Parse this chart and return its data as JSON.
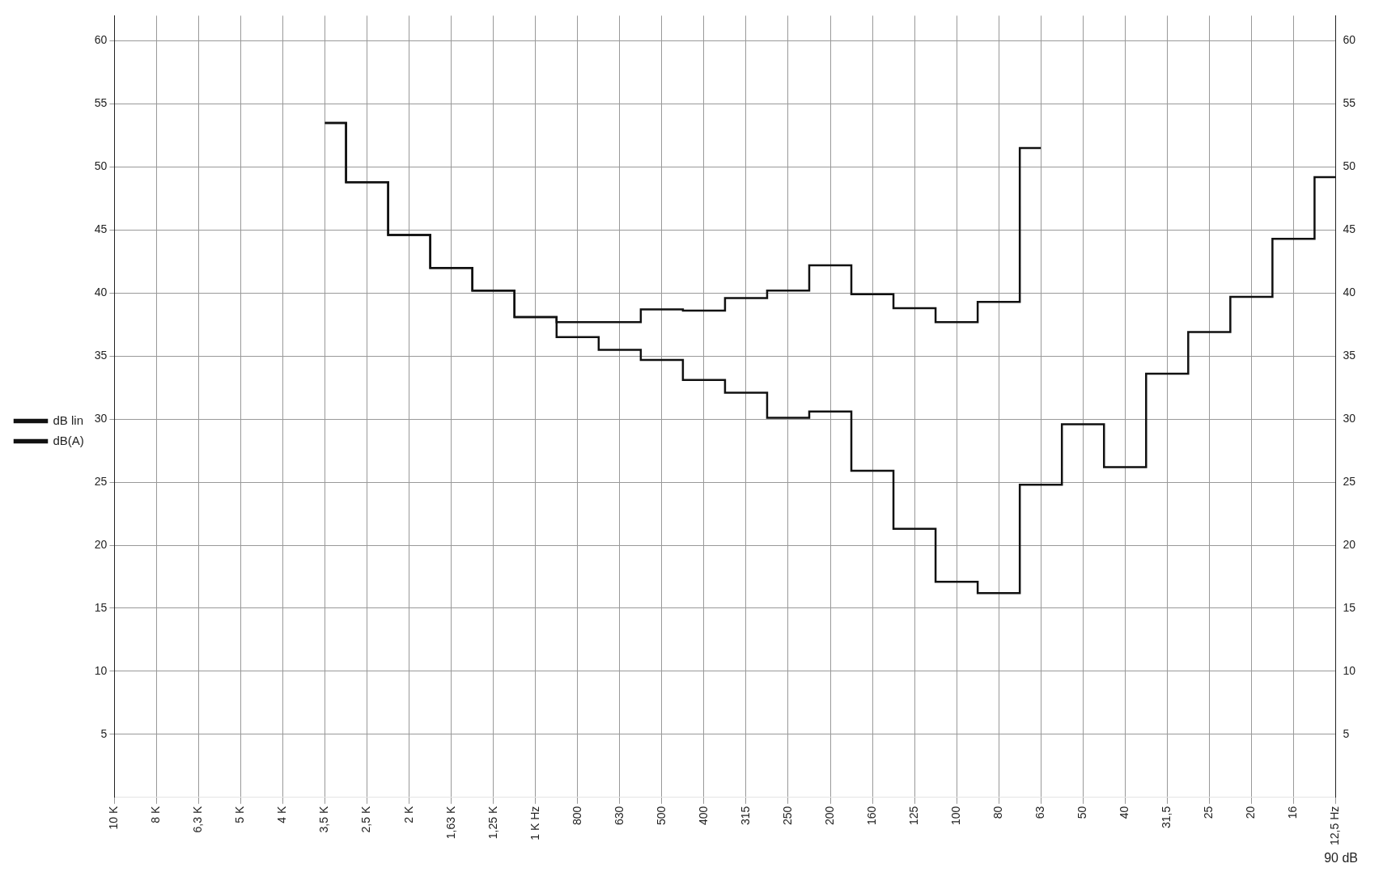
{
  "chart_data": {
    "type": "step",
    "categories": [
      "10 K",
      "8 K",
      "6,3 K",
      "5 K",
      "4 K",
      "3,5 K",
      "2,5 K",
      "2 K",
      "1,63 K",
      "1,25 K",
      "1 K Hz",
      "800",
      "630",
      "500",
      "400",
      "315",
      "250",
      "200",
      "160",
      "125",
      "100",
      "80",
      "63",
      "50",
      "40",
      "31,5",
      "25",
      "20",
      "16",
      "12,5 Hz"
    ],
    "series": [
      {
        "name": "dB lin",
        "color": "#111111",
        "values": [
          null,
          null,
          null,
          null,
          null,
          53.5,
          48.8,
          44.6,
          42,
          40.2,
          38.1,
          37.7,
          37.7,
          38.7,
          38.6,
          39.6,
          40.2,
          42.2,
          39.9,
          38.8,
          37.7,
          39.3,
          51.5,
          null,
          null,
          null,
          null,
          null,
          null,
          null
        ]
      },
      {
        "name": "dB(A)",
        "color": "#111111",
        "values": [
          null,
          null,
          null,
          null,
          null,
          53.5,
          48.8,
          44.6,
          42,
          40.2,
          38.1,
          36.5,
          35.5,
          34.7,
          33.1,
          32.1,
          30.1,
          30.6,
          25.9,
          21.3,
          17.1,
          16.2,
          24.8,
          29.6,
          26.2,
          33.6,
          36.9,
          39.7,
          44.3,
          49.2
        ]
      }
    ],
    "ylim": [
      0,
      62
    ],
    "yticks": [
      5,
      10,
      15,
      20,
      25,
      30,
      35,
      40,
      45,
      50,
      55,
      60
    ],
    "y2lim": [
      0,
      62
    ],
    "y2ticks": [
      5,
      10,
      15,
      20,
      25,
      30,
      35,
      40,
      45,
      50,
      55,
      60
    ],
    "grid": true,
    "legend": "left",
    "annotations": [
      "90 dB"
    ]
  }
}
